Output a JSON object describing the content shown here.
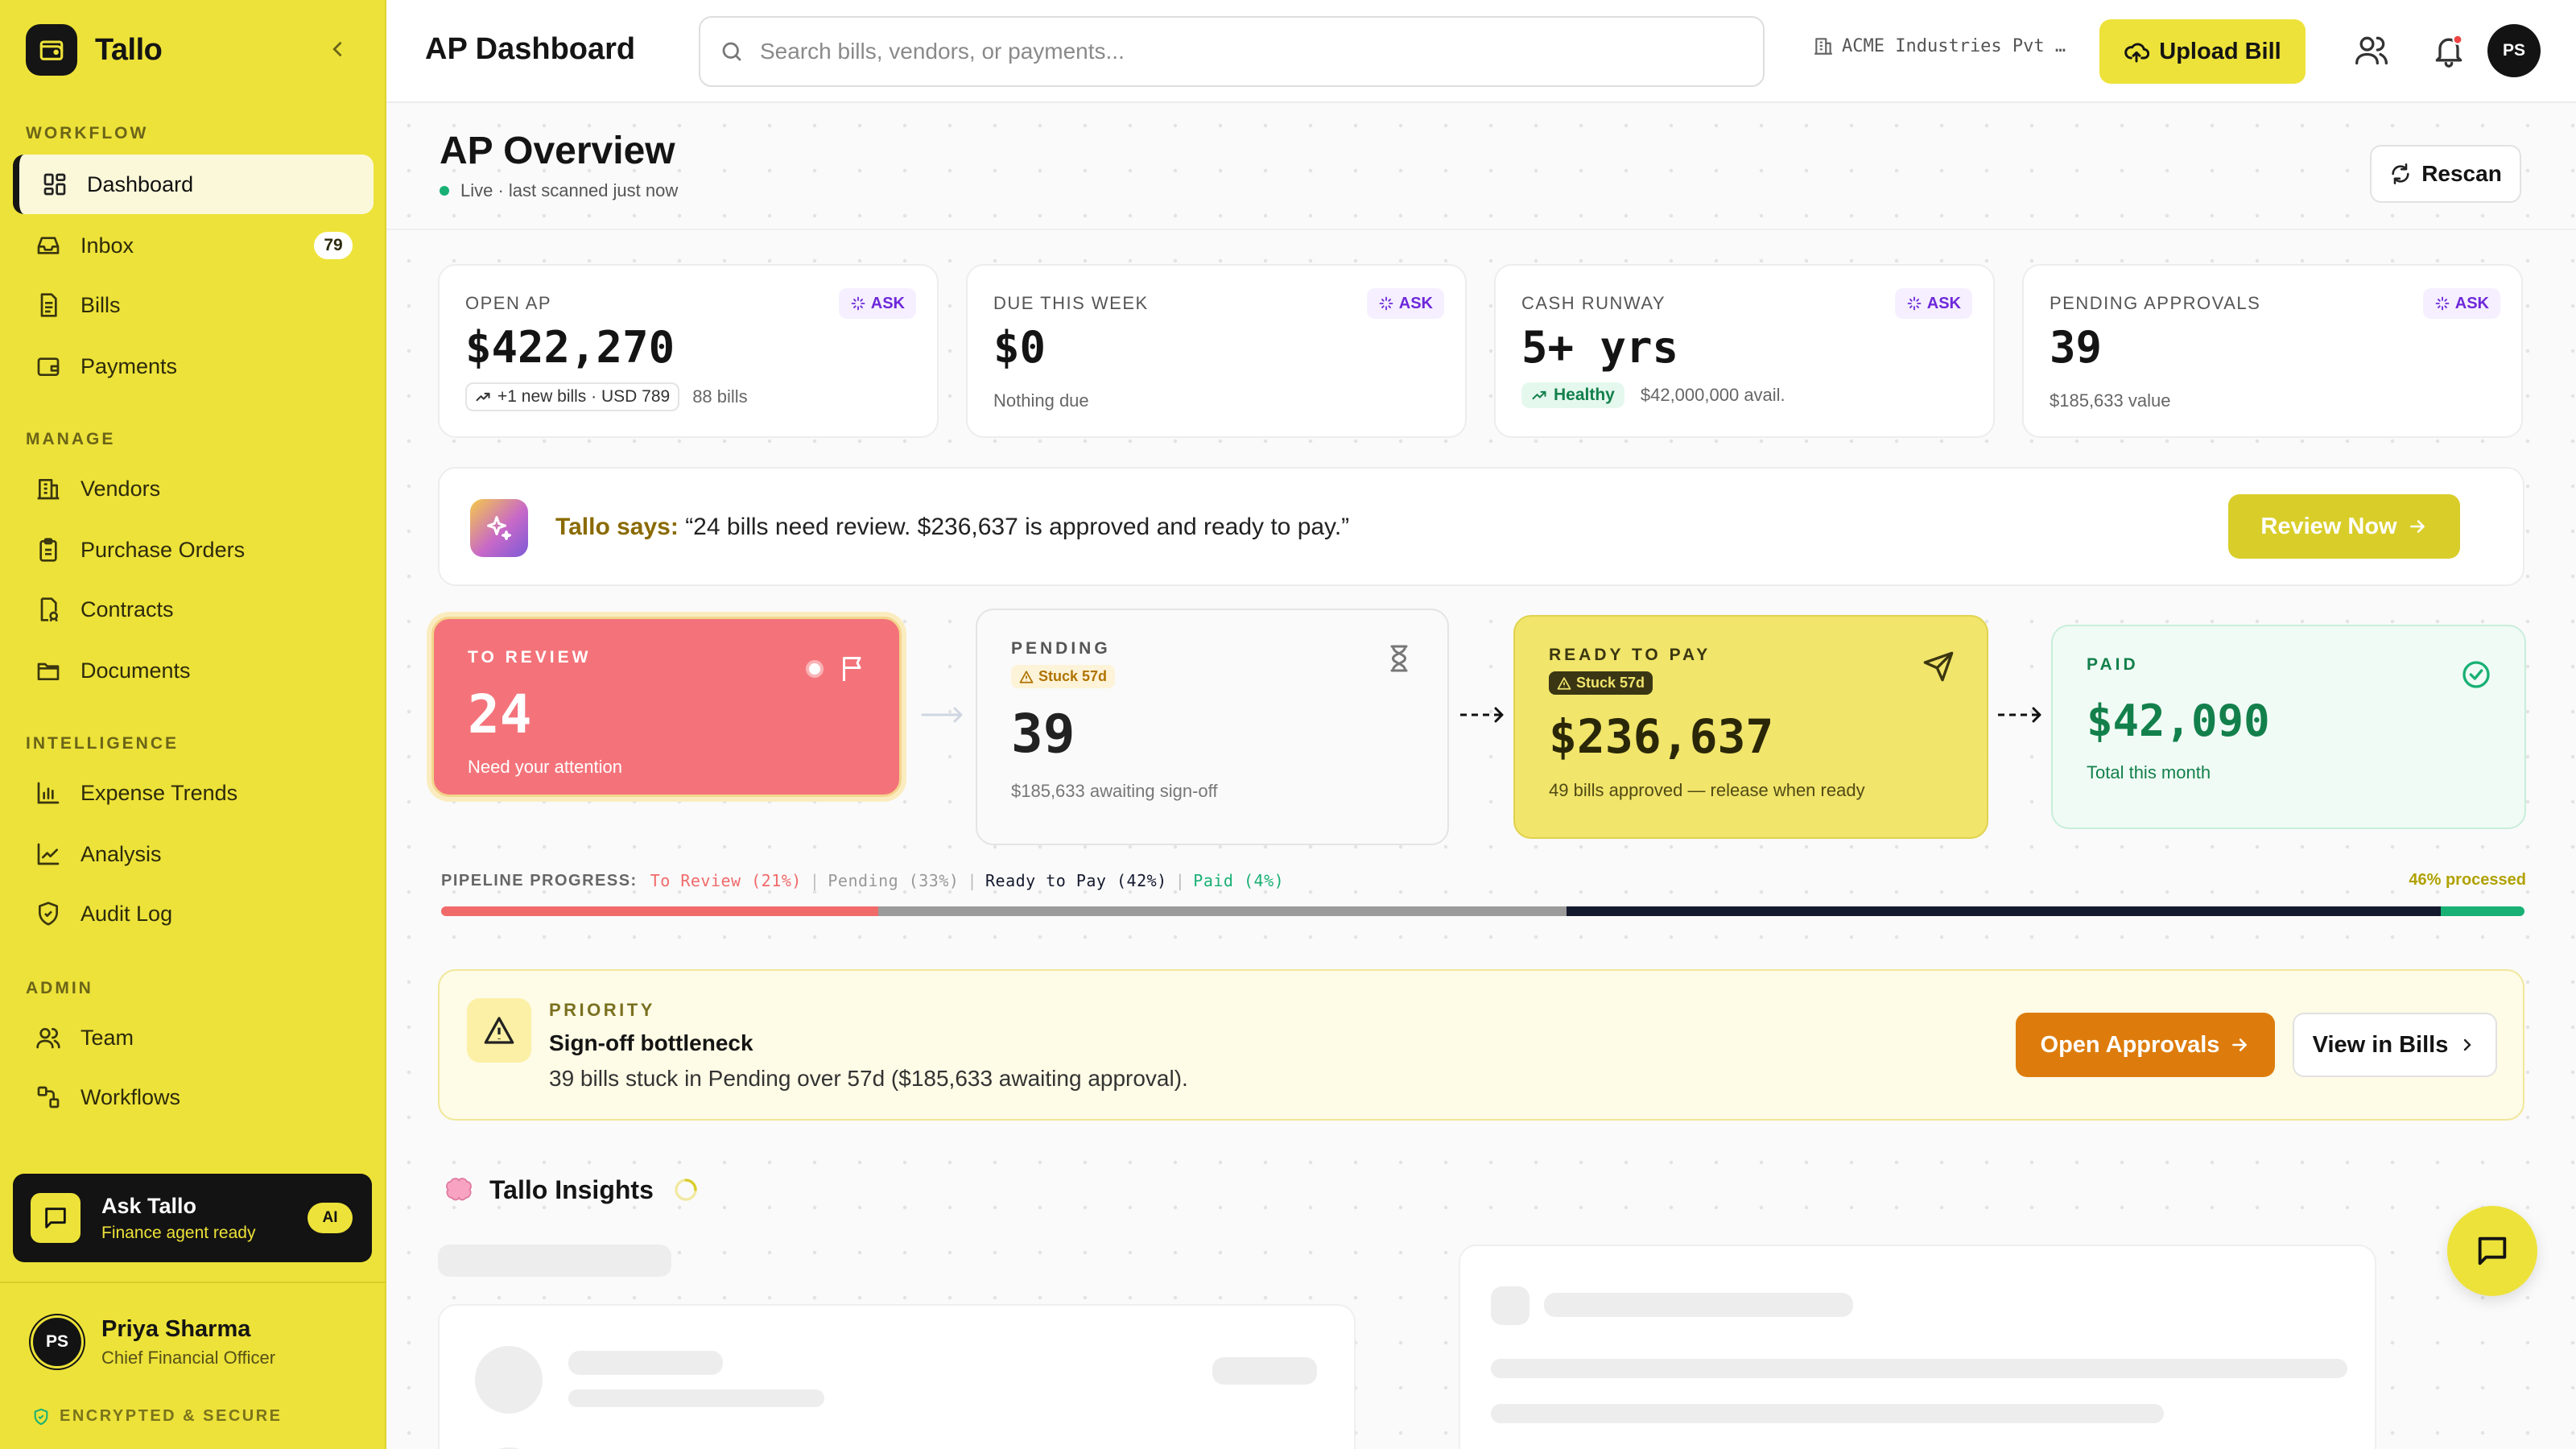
{
  "app": {
    "name": "Tallo"
  },
  "sidebar": {
    "sections": {
      "workflow": "WORKFLOW",
      "manage": "MANAGE",
      "intelligence": "INTELLIGENCE",
      "admin": "ADMIN"
    },
    "items": [
      {
        "label": "Dashboard",
        "icon": "grid-icon",
        "active": true
      },
      {
        "label": "Inbox",
        "icon": "inbox-icon",
        "badge": "79"
      },
      {
        "label": "Bills",
        "icon": "file-icon"
      },
      {
        "label": "Payments",
        "icon": "wallet-icon"
      },
      {
        "label": "Vendors",
        "icon": "building-icon"
      },
      {
        "label": "Purchase Orders",
        "icon": "clipboard-icon"
      },
      {
        "label": "Contracts",
        "icon": "contract-icon"
      },
      {
        "label": "Documents",
        "icon": "folder-icon"
      },
      {
        "label": "Expense Trends",
        "icon": "bar-chart-icon"
      },
      {
        "label": "Analysis",
        "icon": "line-chart-icon"
      },
      {
        "label": "Audit Log",
        "icon": "shield-icon"
      },
      {
        "label": "Team",
        "icon": "users-icon"
      },
      {
        "label": "Workflows",
        "icon": "workflow-icon"
      }
    ],
    "ask": {
      "title": "Ask Tallo",
      "subtitle": "Finance agent ready",
      "badge": "AI"
    },
    "user": {
      "initials": "PS",
      "name": "Priya Sharma",
      "role": "Chief Financial Officer"
    },
    "secure": "ENCRYPTED & SECURE"
  },
  "header": {
    "title": "AP Dashboard",
    "search_placeholder": "Search bills, vendors, or payments...",
    "org": "ACME Industries Pvt …",
    "upload_label": "Upload Bill",
    "avatar_initials": "PS"
  },
  "overview": {
    "title": "AP Overview",
    "status": "Live · last scanned just now",
    "rescan_label": "Rescan"
  },
  "kpis": [
    {
      "label": "OPEN AP",
      "value": "$422,270",
      "trend": "+1 new bills · USD 789",
      "sub": "88 bills",
      "ask": "ASK"
    },
    {
      "label": "DUE THIS WEEK",
      "value": "$0",
      "sub": "Nothing due",
      "ask": "ASK"
    },
    {
      "label": "CASH RUNWAY",
      "value": "5+ yrs",
      "status": "Healthy",
      "sub": "$42,000,000 avail.",
      "ask": "ASK"
    },
    {
      "label": "PENDING APPROVALS",
      "value": "39",
      "sub": "$185,633 value",
      "ask": "ASK"
    }
  ],
  "tallo_says": {
    "label": "Tallo says:",
    "message": "“24 bills need review. $236,637 is approved and ready to pay.”",
    "button": "Review Now"
  },
  "pipeline": {
    "stages": [
      {
        "name": "TO REVIEW",
        "value": "24",
        "sub": "Need your attention"
      },
      {
        "name": "PENDING",
        "stuck": "Stuck 57d",
        "value": "39",
        "sub": "$185,633 awaiting sign-off"
      },
      {
        "name": "READY TO PAY",
        "stuck": "Stuck 57d",
        "value": "$236,637",
        "sub": "49 bills approved — release when ready"
      },
      {
        "name": "PAID",
        "value": "$42,090",
        "sub": "Total this month"
      }
    ],
    "progress_label": "PIPELINE PROGRESS:",
    "segments": [
      {
        "label": "To Review (21%)",
        "pct": 21,
        "color": "#f16a6a"
      },
      {
        "label": "Pending (33%)",
        "pct": 33,
        "color": "#9b9b9b"
      },
      {
        "label": "Ready to Pay (42%)",
        "pct": 42,
        "color": "#141a2e"
      },
      {
        "label": "Paid (4%)",
        "pct": 4,
        "color": "#18b074"
      }
    ],
    "processed": "46% processed"
  },
  "priority": {
    "tag": "PRIORITY",
    "title": "Sign-off bottleneck",
    "description": "39 bills stuck in Pending over 57d ($185,633 awaiting approval).",
    "primary_button": "Open Approvals",
    "secondary_button": "View in Bills"
  },
  "insights": {
    "title": "Tallo Insights"
  }
}
